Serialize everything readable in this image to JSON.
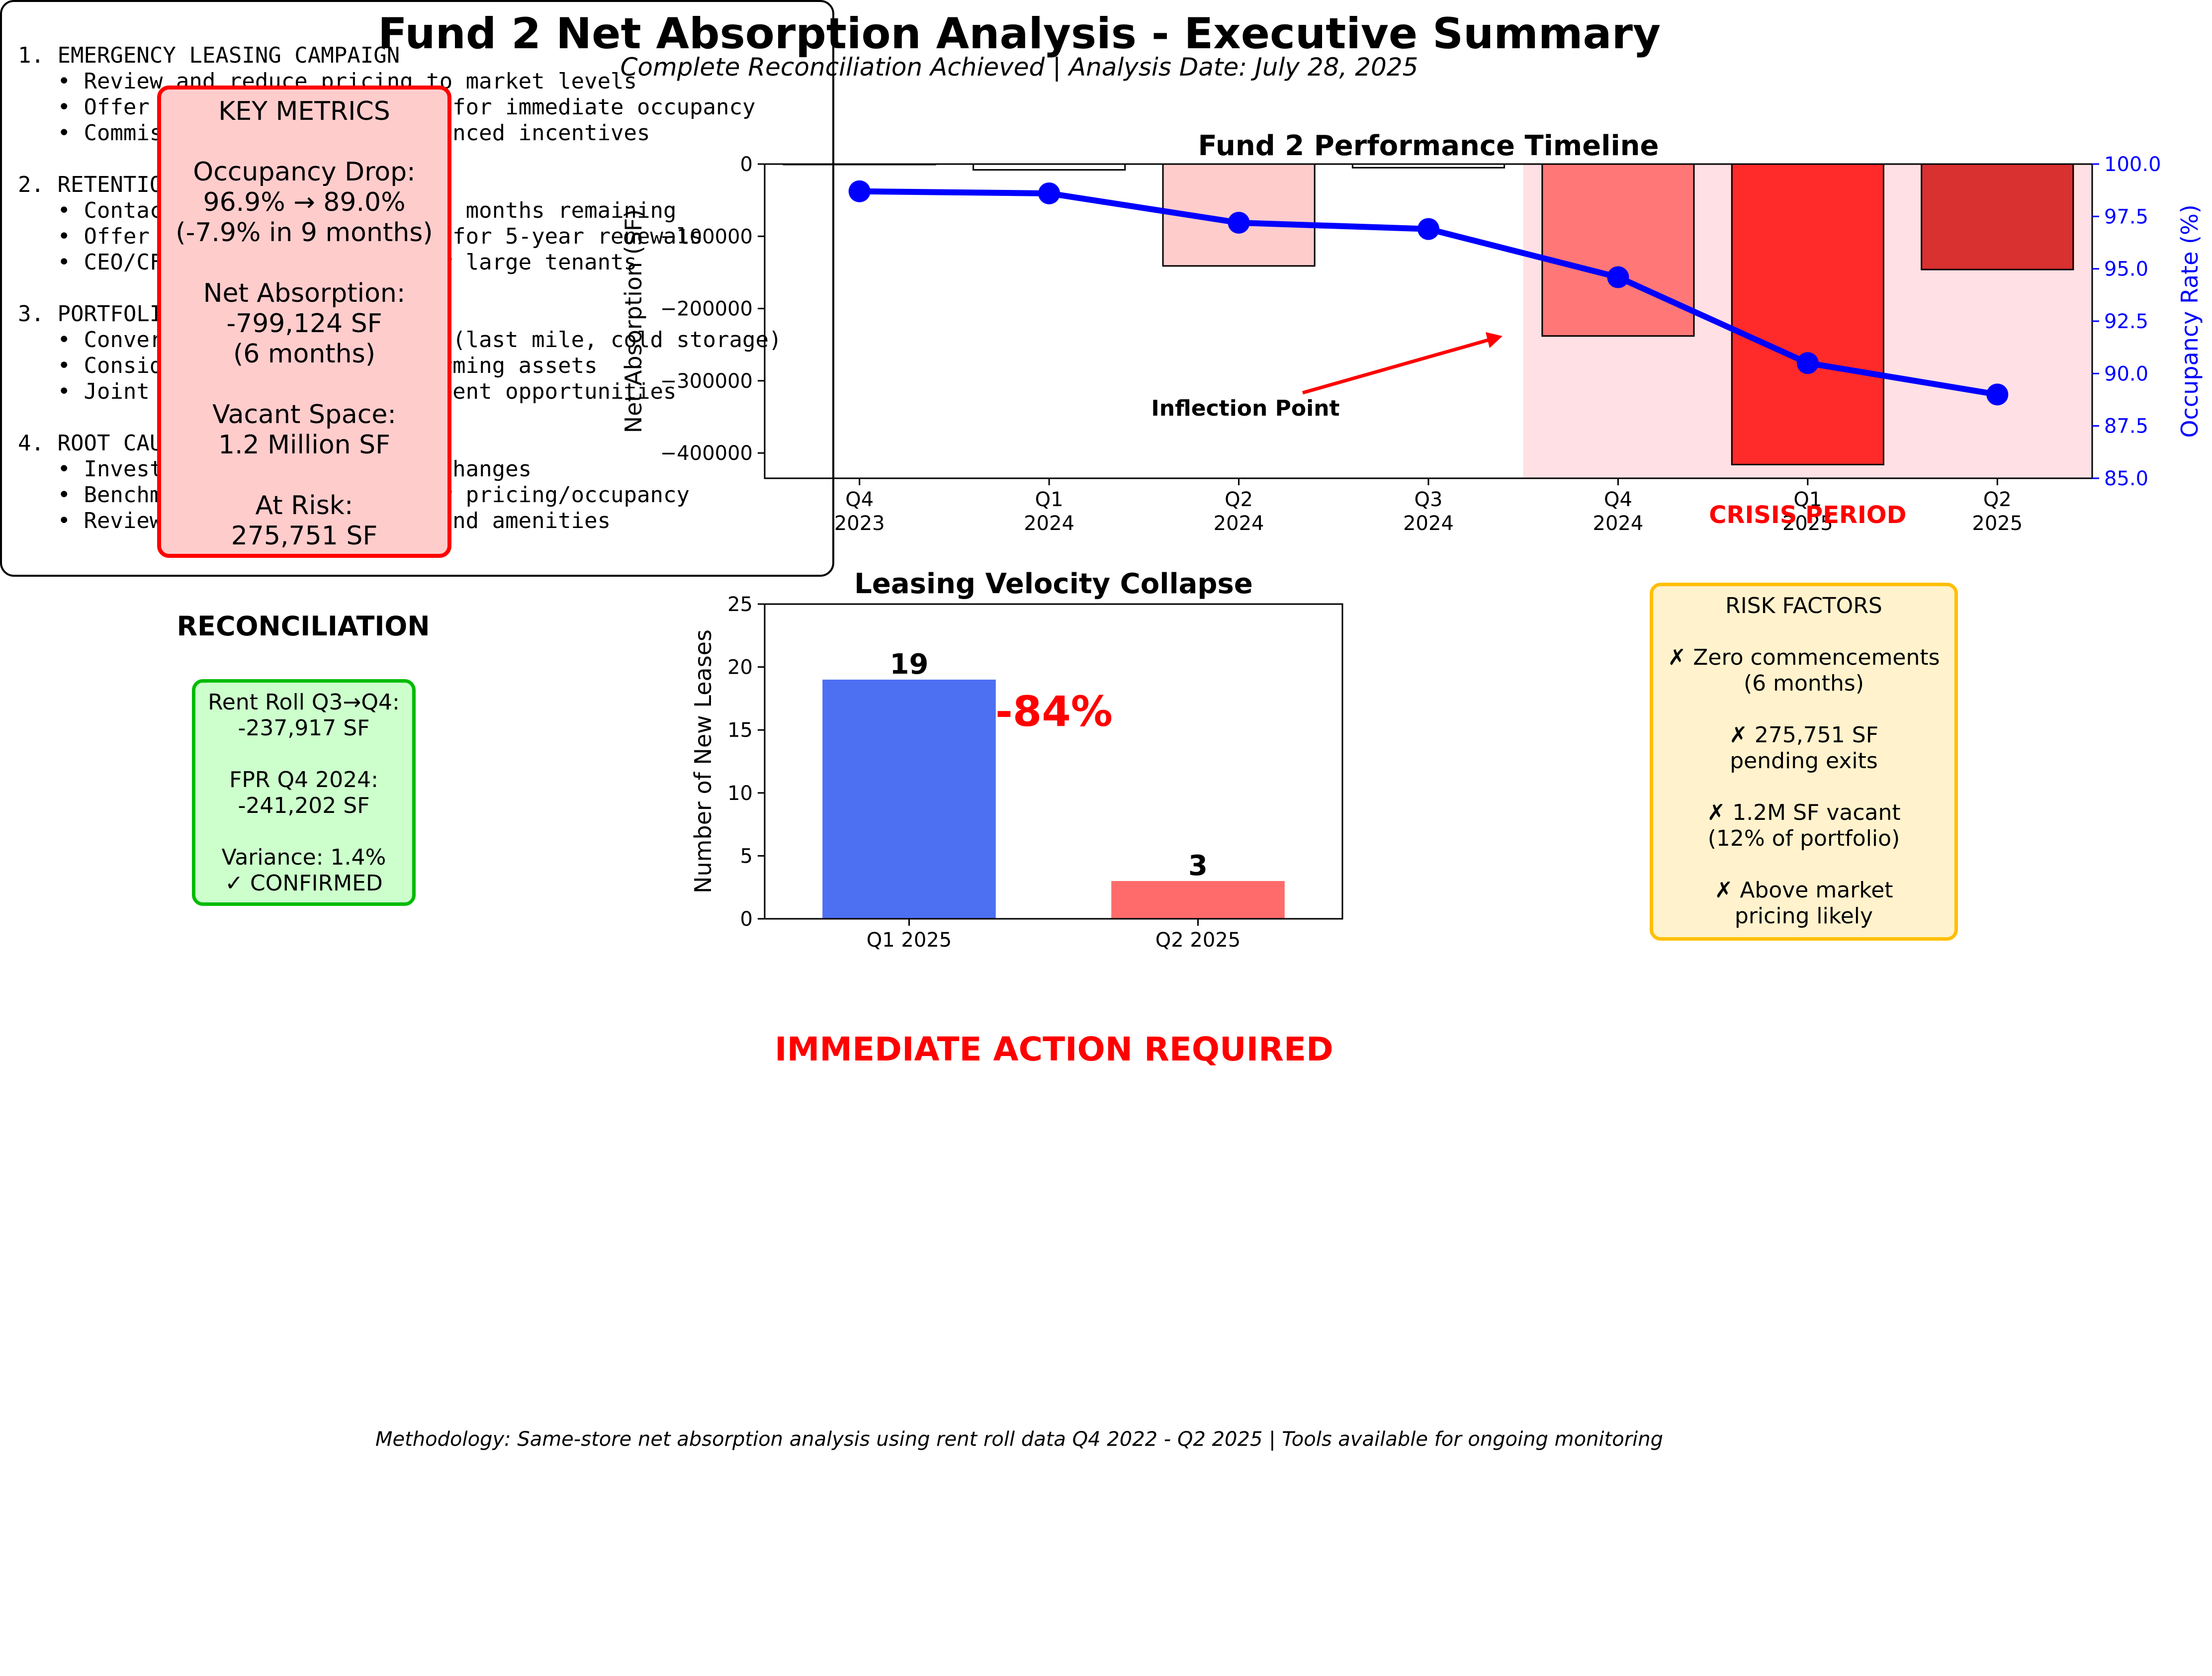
{
  "title": "Fund 2 Net Absorption Analysis - Executive Summary",
  "subtitle": "Complete Reconciliation Achieved | Analysis Date: July 28, 2025",
  "key_metrics_text": "KEY METRICS\n\nOccupancy Drop:\n96.9% → 89.0%\n(-7.9% in 9 months)\n\nNet Absorption:\n-799,124 SF\n(6 months)\n\nVacant Space:\n1.2 Million SF\n\nAt Risk:\n275,751 SF",
  "reconciliation": {
    "title": "RECONCILIATION",
    "text": "Rent Roll Q3→Q4:\n-237,917 SF\n\nFPR Q4 2024:\n-241,202 SF\n\nVariance: 1.4%\n✓ CONFIRMED"
  },
  "risk_factors_text": "RISK FACTORS\n\n✗ Zero commencements\n(6 months)\n\n✗ 275,751 SF\npending exits\n\n✗ 1.2M SF vacant\n(12% of portfolio)\n\n✗ Above market\npricing likely",
  "action_title": "IMMEDIATE ACTION REQUIRED",
  "actions": [
    {
      "heading": "1. EMERGENCY LEASING CAMPAIGN",
      "items": [
        "   • Review and reduce pricing to market levels",
        "   • Offer 6-12 months free rent for immediate occupancy",
        "   • Commission brokers with enhanced incentives"
      ]
    },
    {
      "heading": "2. RETENTION PROGRAM",
      "items": [
        "   • Contact all tenants with <12 months remaining",
        "   • Offer 20-30% rent reduction for 5-year renewals",
        "   • CEO/CFO level engagement for large tenants"
      ]
    },
    {
      "heading": "3. PORTFOLIO REPOSITIONING",
      "items": [
        "   • Convert to alternative uses (last mile, cold storage)",
        "   • Consider sale of underperforming assets",
        "   • Joint venture for redevelopment opportunities"
      ]
    },
    {
      "heading": "4. ROOT CAUSE ANALYSIS",
      "items": [
        "   • Investigate Q3 2024 market changes",
        "   • Benchmark against competitor pricing/occupancy",
        "   • Review property conditions and amenities"
      ]
    }
  ],
  "footer_note": "Methodology: Same-store net absorption analysis using rent roll data Q4 2022 - Q2 2025 | Tools available for ongoing monitoring",
  "chart_data": [
    {
      "type": "bar+line",
      "title": "Fund 2 Performance Timeline",
      "categories": [
        "Q4\n2023",
        "Q1\n2024",
        "Q2\n2024",
        "Q3\n2024",
        "Q4\n2024",
        "Q1\n2025",
        "Q2\n2025"
      ],
      "ylabel": "Net Absorption (SF)",
      "y2label": "Occupancy Rate (%)",
      "ylim": [
        -435000,
        0
      ],
      "y2lim": [
        85,
        100
      ],
      "yticks": [
        0,
        -100000,
        -200000,
        -300000,
        -400000
      ],
      "y2ticks": [
        100.0,
        97.5,
        95.0,
        92.5,
        90.0,
        87.5,
        85.0
      ],
      "net_absorption": [
        0,
        -8000,
        -141000,
        -5000,
        -238000,
        -416000,
        -146000
      ],
      "bar_colors": [
        "#ffffff",
        "#ffffff",
        "#ffcccc",
        "#ffffff",
        "#ff7777",
        "#ff2a2a",
        "#d93030"
      ],
      "occupancy": [
        98.7,
        98.6,
        97.2,
        96.9,
        94.6,
        90.5,
        89.0
      ],
      "line_color": "#0000ff",
      "shaded_region": {
        "label": "CRISIS PERIOD",
        "from_index": 4,
        "to_index": 6,
        "color": "#ffe0e4"
      },
      "annotation": {
        "text": "Inflection Point",
        "points_to": "Q4 2024"
      },
      "grid": false
    },
    {
      "type": "bar",
      "title": "Leasing Velocity Collapse",
      "categories": [
        "Q1 2025",
        "Q2 2025"
      ],
      "values": [
        19,
        3
      ],
      "colors": [
        "#4d6ff2",
        "#ff6b6b"
      ],
      "ylabel": "Number of New Leases",
      "ylim": [
        0,
        25
      ],
      "yticks": [
        0,
        5,
        10,
        15,
        20,
        25
      ],
      "annotation": "-84%",
      "grid": false
    }
  ]
}
